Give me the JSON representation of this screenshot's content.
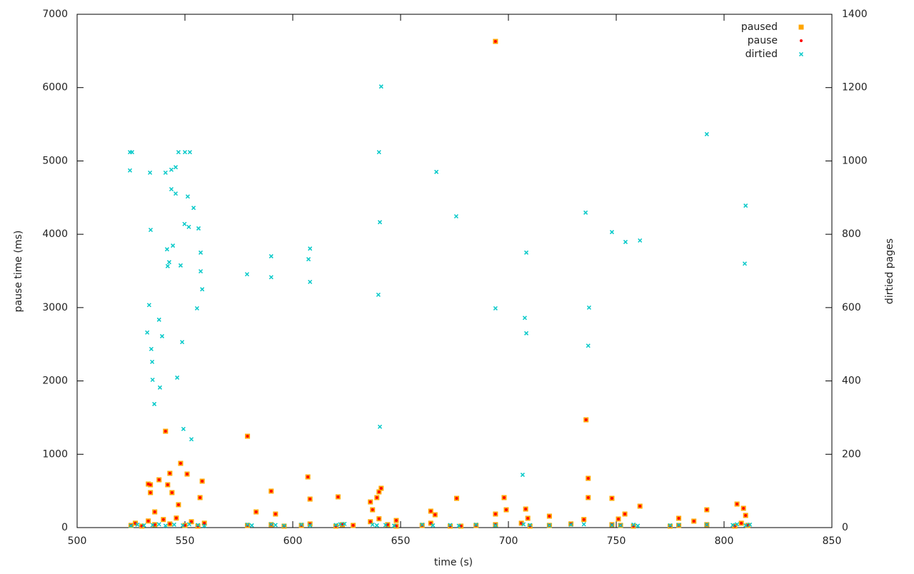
{
  "chart_data": {
    "type": "scatter",
    "xlabel": "time (s)",
    "ylabel": "pause time (ms)",
    "y2label": "dirtied pages",
    "xlim": [
      500,
      850
    ],
    "xticks": [
      500,
      550,
      600,
      650,
      700,
      750,
      800,
      850
    ],
    "ylim": [
      0,
      7000
    ],
    "yticks": [
      0,
      1000,
      2000,
      3000,
      4000,
      5000,
      6000,
      7000
    ],
    "y2lim": [
      0,
      1400
    ],
    "y2ticks": [
      0,
      200,
      400,
      600,
      800,
      1000,
      1200,
      1400
    ],
    "legend": "top-right",
    "series": [
      {
        "name": "paused",
        "color": "#ffa500",
        "marker": "square",
        "x": [
          694,
          541,
          579,
          736,
          548,
          543,
          551,
          533,
          534,
          558,
          538,
          542,
          590,
          607,
          608,
          621,
          641,
          640,
          639,
          676,
          698,
          737,
          737,
          748,
          792,
          806,
          809,
          761,
          583,
          592,
          664,
          666,
          694,
          699,
          708,
          709,
          719,
          636,
          637,
          534,
          544,
          536,
          547,
          557,
          648,
          779,
          786,
          754,
          751,
          810,
          525,
          527,
          530,
          533,
          536,
          540,
          543,
          546,
          550,
          553,
          556,
          559,
          579,
          590,
          596,
          604,
          608,
          620,
          623,
          628,
          636,
          640,
          644,
          648,
          660,
          664,
          673,
          678,
          685,
          694,
          706,
          710,
          719,
          729,
          735,
          748,
          752,
          758,
          775,
          779,
          792,
          805,
          808,
          811
        ],
        "values": [
          6630,
          1314,
          1246,
          1470,
          876,
          740,
          730,
          594,
          584,
          633,
          652,
          584,
          497,
          691,
          389,
          419,
          536,
          487,
          409,
          399,
          409,
          672,
          409,
          399,
          243,
          321,
          263,
          292,
          214,
          185,
          224,
          175,
          185,
          243,
          253,
          127,
          156,
          350,
          243,
          477,
          477,
          214,
          312,
          409,
          97,
          127,
          88,
          185,
          117,
          166,
          30,
          60,
          20,
          90,
          40,
          110,
          50,
          130,
          30,
          80,
          20,
          60,
          30,
          40,
          20,
          30,
          50,
          20,
          40,
          30,
          80,
          120,
          40,
          20,
          30,
          60,
          20,
          20,
          30,
          40,
          60,
          20,
          30,
          50,
          110,
          40,
          30,
          20,
          20,
          30,
          40,
          20,
          60,
          30
        ]
      },
      {
        "name": "pause",
        "color": "#ff0000",
        "marker": "circle",
        "x": [
          694,
          541,
          579,
          736,
          548,
          543,
          551,
          533,
          534,
          558,
          538,
          542,
          590,
          607,
          608,
          621,
          641,
          640,
          639,
          676,
          698,
          737,
          737,
          748,
          792,
          806,
          809,
          761,
          583,
          592,
          664,
          666,
          694,
          699,
          708,
          709,
          719,
          636,
          637,
          534,
          544,
          536,
          547,
          557,
          648,
          779,
          786,
          754,
          751,
          810,
          525,
          527,
          530,
          533,
          536,
          540,
          543,
          546,
          550,
          553,
          556,
          559,
          579,
          590,
          596,
          604,
          608,
          620,
          623,
          628,
          636,
          640,
          644,
          648,
          660,
          664,
          673,
          678,
          685,
          694,
          706,
          710,
          719,
          729,
          735,
          748,
          752,
          758,
          775,
          779,
          792,
          805,
          808,
          811
        ],
        "values": [
          6630,
          1314,
          1246,
          1470,
          876,
          740,
          730,
          594,
          584,
          633,
          652,
          584,
          497,
          691,
          389,
          419,
          536,
          487,
          409,
          399,
          409,
          672,
          409,
          399,
          243,
          321,
          263,
          292,
          214,
          185,
          224,
          175,
          185,
          243,
          253,
          127,
          156,
          350,
          243,
          477,
          477,
          214,
          312,
          409,
          97,
          127,
          88,
          185,
          117,
          166,
          30,
          60,
          20,
          90,
          40,
          110,
          50,
          130,
          30,
          80,
          20,
          60,
          30,
          40,
          20,
          30,
          50,
          20,
          40,
          30,
          80,
          120,
          40,
          20,
          30,
          60,
          20,
          20,
          30,
          40,
          60,
          20,
          30,
          50,
          110,
          40,
          30,
          20,
          20,
          30,
          40,
          20,
          60,
          30
        ]
      },
      {
        "name": "dirtied",
        "color": "#00c8c8",
        "marker": "x",
        "axis": "y2",
        "x": [
          641,
          792,
          524.5,
          525.5,
          547,
          550,
          552.3,
          640,
          524.5,
          533.8,
          541,
          543.7,
          545.7,
          666.6,
          543.7,
          545.7,
          551.3,
          554,
          810,
          675.8,
          735.8,
          549.8,
          551.8,
          556.3,
          534.1,
          640.4,
          748,
          754.3,
          761,
          608,
          541.7,
          544.4,
          557.3,
          708.3,
          590,
          607.3,
          542.7,
          542,
          548,
          809.6,
          578.8,
          590,
          557.3,
          608,
          558,
          639.7,
          533.4,
          555.6,
          694,
          737.4,
          707.6,
          538,
          532.5,
          539.4,
          708.3,
          548.7,
          534.4,
          737,
          534.8,
          535,
          546.4,
          538.4,
          535.8,
          640.4,
          549.3,
          553,
          706.6,
          525,
          528,
          531,
          535,
          538,
          541,
          545,
          549,
          552,
          556,
          559,
          579,
          581,
          590,
          592,
          596,
          604,
          608,
          620,
          622,
          624,
          637,
          639,
          643,
          647,
          660,
          665,
          673,
          677,
          685,
          694,
          707,
          710,
          719,
          729,
          735,
          748,
          752,
          758,
          760,
          775,
          779,
          792,
          804,
          806,
          810,
          812
        ],
        "values": [
          1203,
          1073,
          1024,
          1024,
          1024,
          1024,
          1024,
          1024,
          974,
          968,
          968,
          976,
          983,
          970,
          923,
          911,
          903,
          872,
          878,
          849,
          859,
          828,
          820,
          816,
          812,
          833,
          806,
          779,
          783,
          761,
          759,
          769,
          750,
          750,
          740,
          732,
          724,
          713,
          715,
          720,
          691,
          683,
          699,
          670,
          650,
          635,
          607,
          598,
          598,
          600,
          572,
          567,
          532,
          522,
          530,
          506,
          487,
          496,
          452,
          403,
          409,
          382,
          337,
          275,
          269,
          241,
          144,
          5,
          8,
          6,
          7,
          9,
          5,
          8,
          6,
          9,
          7,
          5,
          8,
          6,
          9,
          7,
          5,
          8,
          6,
          7,
          9,
          10,
          8,
          6,
          7,
          5,
          8,
          6,
          7,
          5,
          8,
          6,
          9,
          7,
          6,
          8,
          9,
          7,
          6,
          8,
          5,
          6,
          7,
          8,
          7,
          9,
          6,
          8
        ]
      }
    ]
  }
}
